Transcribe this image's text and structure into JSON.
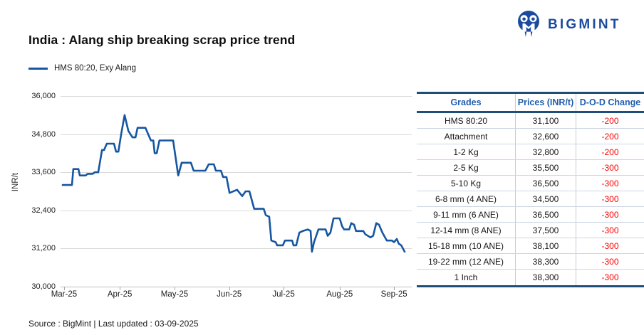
{
  "header": {
    "title": "India : Alang ship breaking scrap price trend",
    "logo_text": "BIGMINT"
  },
  "legend": {
    "label": "HMS 80:20, Exy Alang"
  },
  "footer": {
    "text": "Source : BigMint | Last updated : 03-09-2025"
  },
  "colors": {
    "line": "#1656a0",
    "brand_blue": "#1b4b9e",
    "table_border": "#1f4e79",
    "table_header_text": "#1f5dad",
    "negative_change": "#fe0000",
    "gridline": "#d9d9d9"
  },
  "chart_data": {
    "type": "line",
    "title": "India : Alang ship breaking scrap price trend",
    "xlabel": "",
    "ylabel": "INR/t",
    "ylim": [
      30000,
      36000
    ],
    "grid": true,
    "legend_position": "top-left",
    "y_ticks": [
      {
        "v": 36000,
        "label": "36,000"
      },
      {
        "v": 34800,
        "label": "34,800"
      },
      {
        "v": 33600,
        "label": "33,600"
      },
      {
        "v": 32400,
        "label": "32,400"
      },
      {
        "v": 31200,
        "label": "31,200"
      },
      {
        "v": 30000,
        "label": "30,000"
      }
    ],
    "x_ticks": [
      {
        "f": 0.004,
        "label": "Mar-25"
      },
      {
        "f": 0.167,
        "label": "Apr-25"
      },
      {
        "f": 0.327,
        "label": "May-25"
      },
      {
        "f": 0.487,
        "label": "Jun-25"
      },
      {
        "f": 0.646,
        "label": "Jul-25"
      },
      {
        "f": 0.81,
        "label": "Aug-25"
      },
      {
        "f": 0.969,
        "label": "Sep-25"
      }
    ],
    "series": [
      {
        "name": "HMS 80:20, Exy Alang",
        "points": [
          [
            0.0,
            33200
          ],
          [
            0.027,
            33200
          ],
          [
            0.031,
            33700
          ],
          [
            0.046,
            33700
          ],
          [
            0.05,
            33500
          ],
          [
            0.067,
            33500
          ],
          [
            0.073,
            33550
          ],
          [
            0.088,
            33550
          ],
          [
            0.094,
            33600
          ],
          [
            0.104,
            33600
          ],
          [
            0.115,
            34300
          ],
          [
            0.121,
            34300
          ],
          [
            0.129,
            34500
          ],
          [
            0.15,
            34500
          ],
          [
            0.156,
            34250
          ],
          [
            0.163,
            34250
          ],
          [
            0.171,
            34800
          ],
          [
            0.181,
            35400
          ],
          [
            0.192,
            34900
          ],
          [
            0.204,
            34700
          ],
          [
            0.213,
            34700
          ],
          [
            0.219,
            35000
          ],
          [
            0.242,
            35000
          ],
          [
            0.25,
            34800
          ],
          [
            0.258,
            34600
          ],
          [
            0.265,
            34600
          ],
          [
            0.269,
            34200
          ],
          [
            0.275,
            34200
          ],
          [
            0.283,
            34600
          ],
          [
            0.323,
            34600
          ],
          [
            0.338,
            33500
          ],
          [
            0.348,
            33900
          ],
          [
            0.375,
            33900
          ],
          [
            0.383,
            33650
          ],
          [
            0.417,
            33650
          ],
          [
            0.427,
            33850
          ],
          [
            0.442,
            33850
          ],
          [
            0.448,
            33650
          ],
          [
            0.463,
            33650
          ],
          [
            0.469,
            33450
          ],
          [
            0.479,
            33450
          ],
          [
            0.488,
            32950
          ],
          [
            0.51,
            33050
          ],
          [
            0.525,
            32850
          ],
          [
            0.535,
            33000
          ],
          [
            0.546,
            33000
          ],
          [
            0.56,
            32450
          ],
          [
            0.588,
            32450
          ],
          [
            0.594,
            32250
          ],
          [
            0.604,
            32200
          ],
          [
            0.61,
            31450
          ],
          [
            0.623,
            31400
          ],
          [
            0.627,
            31300
          ],
          [
            0.644,
            31300
          ],
          [
            0.65,
            31450
          ],
          [
            0.671,
            31450
          ],
          [
            0.675,
            31300
          ],
          [
            0.683,
            31300
          ],
          [
            0.692,
            31700
          ],
          [
            0.702,
            31750
          ],
          [
            0.717,
            31800
          ],
          [
            0.725,
            31750
          ],
          [
            0.729,
            31100
          ],
          [
            0.735,
            31400
          ],
          [
            0.748,
            31800
          ],
          [
            0.769,
            31800
          ],
          [
            0.775,
            31600
          ],
          [
            0.783,
            31700
          ],
          [
            0.792,
            32150
          ],
          [
            0.81,
            32150
          ],
          [
            0.817,
            31900
          ],
          [
            0.823,
            31800
          ],
          [
            0.838,
            31800
          ],
          [
            0.844,
            32000
          ],
          [
            0.852,
            31950
          ],
          [
            0.858,
            31750
          ],
          [
            0.879,
            31750
          ],
          [
            0.885,
            31650
          ],
          [
            0.9,
            31550
          ],
          [
            0.908,
            31600
          ],
          [
            0.917,
            32000
          ],
          [
            0.925,
            31950
          ],
          [
            0.935,
            31700
          ],
          [
            0.948,
            31450
          ],
          [
            0.963,
            31450
          ],
          [
            0.969,
            31400
          ],
          [
            0.977,
            31500
          ],
          [
            0.983,
            31350
          ],
          [
            0.99,
            31300
          ],
          [
            1.0,
            31100
          ]
        ]
      }
    ]
  },
  "table": {
    "columns": [
      "Grades",
      "Prices (INR/t)",
      "D-O-D Change"
    ],
    "rows": [
      {
        "grade": "HMS 80:20",
        "price": "31,100",
        "change": "-200"
      },
      {
        "grade": "Attachment",
        "price": "32,600",
        "change": "-200"
      },
      {
        "grade": "1-2 Kg",
        "price": "32,800",
        "change": "-200"
      },
      {
        "grade": "2-5 Kg",
        "price": "35,500",
        "change": "-300"
      },
      {
        "grade": "5-10 Kg",
        "price": "36,500",
        "change": "-300"
      },
      {
        "grade": "6-8 mm (4 ANE)",
        "price": "34,500",
        "change": "-300"
      },
      {
        "grade": "9-11 mm (6 ANE)",
        "price": "36,500",
        "change": "-300"
      },
      {
        "grade": "12-14 mm (8 ANE)",
        "price": "37,500",
        "change": "-300"
      },
      {
        "grade": "15-18 mm (10 ANE)",
        "price": "38,100",
        "change": "-300"
      },
      {
        "grade": "19-22 mm (12 ANE)",
        "price": "38,300",
        "change": "-300"
      },
      {
        "grade": "1 Inch",
        "price": "38,300",
        "change": "-300"
      }
    ]
  }
}
